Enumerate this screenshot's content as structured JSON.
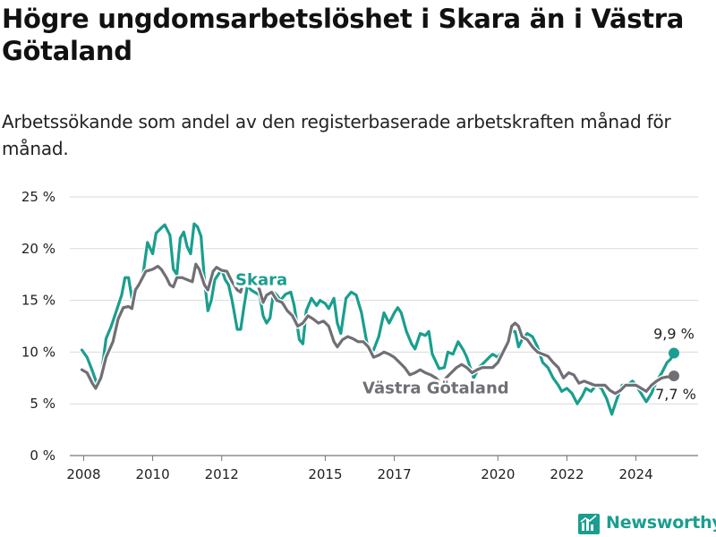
{
  "header": {
    "title": "Högre ungdomsarbetslöshet i Skara än i Västra Götaland",
    "subtitle": "Arbetssökande som andel av den registerbaserade arbetskraften månad för månad."
  },
  "brand": {
    "name": "Newsworthy",
    "icon": "bar-chart-logo-icon",
    "color": "#1a9e8f"
  },
  "chart_data": {
    "type": "line",
    "ylim": [
      0,
      25
    ],
    "y_ticks": [
      "0 %",
      "5 %",
      "10 %",
      "15 %",
      "20 %",
      "25 %"
    ],
    "xlim": [
      2007.6,
      2025.8
    ],
    "x_ticks": [
      "2008",
      "2010",
      "2012",
      "2015",
      "2017",
      "2020",
      "2022",
      "2024"
    ],
    "grid": true,
    "series": [
      {
        "name": "Skara",
        "color": "#1a9e8f",
        "end_label": "9,9 %",
        "points": [
          [
            2007.95,
            10.2
          ],
          [
            2008.1,
            9.5
          ],
          [
            2008.25,
            8.2
          ],
          [
            2008.4,
            6.8
          ],
          [
            2008.5,
            7.5
          ],
          [
            2008.65,
            11.3
          ],
          [
            2008.8,
            12.5
          ],
          [
            2008.95,
            14.0
          ],
          [
            2009.1,
            15.5
          ],
          [
            2009.2,
            17.2
          ],
          [
            2009.3,
            17.2
          ],
          [
            2009.4,
            15.2
          ],
          [
            2009.55,
            16.5
          ],
          [
            2009.7,
            17.0
          ],
          [
            2009.85,
            20.6
          ],
          [
            2010.0,
            19.5
          ],
          [
            2010.1,
            21.5
          ],
          [
            2010.25,
            22.0
          ],
          [
            2010.35,
            22.3
          ],
          [
            2010.5,
            21.3
          ],
          [
            2010.6,
            18.0
          ],
          [
            2010.7,
            17.5
          ],
          [
            2010.8,
            21.0
          ],
          [
            2010.9,
            21.6
          ],
          [
            2011.0,
            20.2
          ],
          [
            2011.1,
            19.5
          ],
          [
            2011.2,
            22.4
          ],
          [
            2011.3,
            22.1
          ],
          [
            2011.4,
            21.2
          ],
          [
            2011.5,
            17.0
          ],
          [
            2011.6,
            14.0
          ],
          [
            2011.7,
            15.0
          ],
          [
            2011.8,
            17.0
          ],
          [
            2011.9,
            17.5
          ],
          [
            2012.0,
            18.0
          ],
          [
            2012.1,
            17.0
          ],
          [
            2012.2,
            16.5
          ],
          [
            2012.3,
            15.0
          ],
          [
            2012.45,
            12.2
          ],
          [
            2012.55,
            12.2
          ],
          [
            2012.65,
            14.5
          ],
          [
            2012.75,
            16.5
          ],
          [
            2012.85,
            16.0
          ],
          [
            2013.0,
            15.7
          ],
          [
            2013.1,
            15.5
          ],
          [
            2013.2,
            13.5
          ],
          [
            2013.3,
            12.8
          ],
          [
            2013.4,
            13.3
          ],
          [
            2013.5,
            15.8
          ],
          [
            2013.6,
            15.5
          ],
          [
            2013.7,
            15.0
          ],
          [
            2013.85,
            15.6
          ],
          [
            2014.0,
            15.8
          ],
          [
            2014.1,
            14.5
          ],
          [
            2014.25,
            11.2
          ],
          [
            2014.35,
            10.8
          ],
          [
            2014.45,
            14.0
          ],
          [
            2014.6,
            15.2
          ],
          [
            2014.75,
            14.5
          ],
          [
            2014.85,
            15.0
          ],
          [
            2015.0,
            14.7
          ],
          [
            2015.1,
            14.2
          ],
          [
            2015.25,
            15.2
          ],
          [
            2015.35,
            12.8
          ],
          [
            2015.45,
            11.8
          ],
          [
            2015.6,
            15.2
          ],
          [
            2015.75,
            15.8
          ],
          [
            2015.9,
            15.5
          ],
          [
            2016.05,
            13.8
          ],
          [
            2016.2,
            11.0
          ],
          [
            2016.3,
            10.0
          ],
          [
            2016.4,
            10.2
          ],
          [
            2016.55,
            11.5
          ],
          [
            2016.7,
            13.8
          ],
          [
            2016.85,
            12.8
          ],
          [
            2017.0,
            13.8
          ],
          [
            2017.1,
            14.3
          ],
          [
            2017.2,
            13.8
          ],
          [
            2017.35,
            12.0
          ],
          [
            2017.5,
            10.8
          ],
          [
            2017.6,
            10.3
          ],
          [
            2017.75,
            11.8
          ],
          [
            2017.9,
            11.6
          ],
          [
            2018.0,
            12.0
          ],
          [
            2018.1,
            9.8
          ],
          [
            2018.3,
            8.4
          ],
          [
            2018.45,
            8.5
          ],
          [
            2018.55,
            10.0
          ],
          [
            2018.7,
            9.8
          ],
          [
            2018.85,
            11.0
          ],
          [
            2019.0,
            10.2
          ],
          [
            2019.1,
            9.5
          ],
          [
            2019.3,
            7.5
          ],
          [
            2019.45,
            8.5
          ],
          [
            2019.6,
            9.0
          ],
          [
            2019.75,
            9.5
          ],
          [
            2019.85,
            9.8
          ],
          [
            2020.0,
            9.5
          ],
          [
            2020.15,
            10.2
          ],
          [
            2020.3,
            11.3
          ],
          [
            2020.4,
            12.0
          ],
          [
            2020.5,
            12.0
          ],
          [
            2020.6,
            10.5
          ],
          [
            2020.7,
            11.2
          ],
          [
            2020.85,
            11.8
          ],
          [
            2021.0,
            11.5
          ],
          [
            2021.15,
            10.5
          ],
          [
            2021.3,
            9.0
          ],
          [
            2021.45,
            8.5
          ],
          [
            2021.6,
            7.5
          ],
          [
            2021.75,
            6.8
          ],
          [
            2021.85,
            6.2
          ],
          [
            2022.0,
            6.5
          ],
          [
            2022.15,
            6.0
          ],
          [
            2022.3,
            5.0
          ],
          [
            2022.45,
            5.8
          ],
          [
            2022.55,
            6.5
          ],
          [
            2022.7,
            6.2
          ],
          [
            2022.85,
            6.8
          ],
          [
            2023.0,
            6.5
          ],
          [
            2023.15,
            5.5
          ],
          [
            2023.3,
            4.0
          ],
          [
            2023.45,
            5.5
          ],
          [
            2023.6,
            6.8
          ],
          [
            2023.75,
            6.8
          ],
          [
            2023.9,
            7.2
          ],
          [
            2024.0,
            6.8
          ],
          [
            2024.15,
            6.0
          ],
          [
            2024.3,
            5.2
          ],
          [
            2024.45,
            6.0
          ],
          [
            2024.6,
            7.2
          ],
          [
            2024.75,
            8.0
          ],
          [
            2024.9,
            9.0
          ],
          [
            2025.0,
            9.3
          ],
          [
            2025.1,
            9.9
          ]
        ]
      },
      {
        "name": "Västra Götaland",
        "color": "#6f6f75",
        "end_label": "7,7 %",
        "points": [
          [
            2007.95,
            8.3
          ],
          [
            2008.1,
            8.0
          ],
          [
            2008.25,
            7.0
          ],
          [
            2008.35,
            6.5
          ],
          [
            2008.5,
            7.5
          ],
          [
            2008.65,
            9.5
          ],
          [
            2008.85,
            11.0
          ],
          [
            2009.0,
            13.2
          ],
          [
            2009.15,
            14.3
          ],
          [
            2009.3,
            14.4
          ],
          [
            2009.4,
            14.2
          ],
          [
            2009.5,
            16.0
          ],
          [
            2009.6,
            16.5
          ],
          [
            2009.8,
            17.8
          ],
          [
            2010.0,
            18.0
          ],
          [
            2010.15,
            18.3
          ],
          [
            2010.25,
            18.0
          ],
          [
            2010.4,
            17.2
          ],
          [
            2010.5,
            16.5
          ],
          [
            2010.6,
            16.3
          ],
          [
            2010.7,
            17.2
          ],
          [
            2010.85,
            17.2
          ],
          [
            2011.0,
            17.0
          ],
          [
            2011.15,
            16.8
          ],
          [
            2011.25,
            18.5
          ],
          [
            2011.35,
            18.0
          ],
          [
            2011.5,
            16.5
          ],
          [
            2011.6,
            16.0
          ],
          [
            2011.75,
            17.8
          ],
          [
            2011.85,
            18.2
          ],
          [
            2012.0,
            17.9
          ],
          [
            2012.15,
            17.8
          ],
          [
            2012.3,
            16.8
          ],
          [
            2012.45,
            16.0
          ],
          [
            2012.55,
            15.8
          ],
          [
            2012.65,
            17.2
          ],
          [
            2012.75,
            17.5
          ],
          [
            2012.85,
            17.5
          ],
          [
            2013.0,
            16.8
          ],
          [
            2013.1,
            16.0
          ],
          [
            2013.2,
            14.8
          ],
          [
            2013.3,
            15.5
          ],
          [
            2013.45,
            15.8
          ],
          [
            2013.6,
            15.0
          ],
          [
            2013.75,
            14.8
          ],
          [
            2013.9,
            14.0
          ],
          [
            2014.05,
            13.5
          ],
          [
            2014.2,
            12.5
          ],
          [
            2014.35,
            12.8
          ],
          [
            2014.5,
            13.5
          ],
          [
            2014.65,
            13.2
          ],
          [
            2014.8,
            12.8
          ],
          [
            2014.95,
            13.0
          ],
          [
            2015.1,
            12.5
          ],
          [
            2015.25,
            11.0
          ],
          [
            2015.35,
            10.5
          ],
          [
            2015.5,
            11.2
          ],
          [
            2015.65,
            11.5
          ],
          [
            2015.8,
            11.3
          ],
          [
            2015.95,
            11.0
          ],
          [
            2016.1,
            11.0
          ],
          [
            2016.25,
            10.5
          ],
          [
            2016.4,
            9.5
          ],
          [
            2016.55,
            9.7
          ],
          [
            2016.7,
            10.0
          ],
          [
            2016.85,
            9.8
          ],
          [
            2017.0,
            9.5
          ],
          [
            2017.15,
            9.0
          ],
          [
            2017.3,
            8.5
          ],
          [
            2017.45,
            7.8
          ],
          [
            2017.6,
            8.0
          ],
          [
            2017.75,
            8.3
          ],
          [
            2017.9,
            8.0
          ],
          [
            2018.05,
            7.8
          ],
          [
            2018.2,
            7.5
          ],
          [
            2018.35,
            7.0
          ],
          [
            2018.5,
            7.5
          ],
          [
            2018.65,
            8.0
          ],
          [
            2018.8,
            8.5
          ],
          [
            2018.95,
            8.8
          ],
          [
            2019.1,
            8.5
          ],
          [
            2019.25,
            8.0
          ],
          [
            2019.4,
            8.3
          ],
          [
            2019.55,
            8.5
          ],
          [
            2019.7,
            8.5
          ],
          [
            2019.85,
            8.5
          ],
          [
            2020.0,
            9.0
          ],
          [
            2020.15,
            10.0
          ],
          [
            2020.3,
            11.0
          ],
          [
            2020.4,
            12.5
          ],
          [
            2020.5,
            12.8
          ],
          [
            2020.6,
            12.5
          ],
          [
            2020.7,
            11.5
          ],
          [
            2020.85,
            11.2
          ],
          [
            2021.0,
            10.5
          ],
          [
            2021.15,
            10.0
          ],
          [
            2021.3,
            9.8
          ],
          [
            2021.45,
            9.6
          ],
          [
            2021.6,
            9.0
          ],
          [
            2021.75,
            8.5
          ],
          [
            2021.9,
            7.5
          ],
          [
            2022.05,
            8.0
          ],
          [
            2022.2,
            7.8
          ],
          [
            2022.35,
            7.0
          ],
          [
            2022.5,
            7.2
          ],
          [
            2022.65,
            7.0
          ],
          [
            2022.8,
            6.8
          ],
          [
            2022.95,
            6.8
          ],
          [
            2023.1,
            6.8
          ],
          [
            2023.25,
            6.3
          ],
          [
            2023.4,
            6.0
          ],
          [
            2023.55,
            6.3
          ],
          [
            2023.7,
            6.8
          ],
          [
            2023.85,
            6.8
          ],
          [
            2024.0,
            6.8
          ],
          [
            2024.15,
            6.5
          ],
          [
            2024.3,
            6.2
          ],
          [
            2024.45,
            6.8
          ],
          [
            2024.6,
            7.2
          ],
          [
            2024.75,
            7.5
          ],
          [
            2024.9,
            7.6
          ],
          [
            2025.0,
            7.6
          ],
          [
            2025.1,
            7.7
          ]
        ]
      }
    ]
  }
}
